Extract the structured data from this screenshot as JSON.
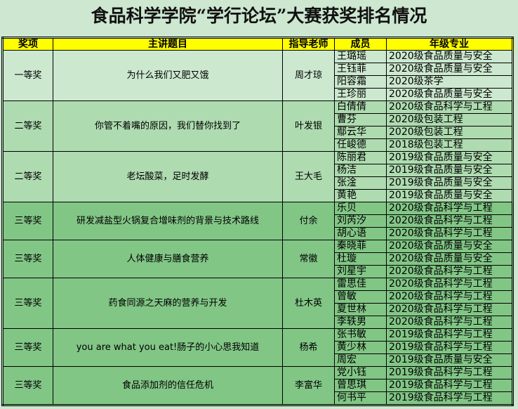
{
  "title": "食品科学学院“学行论坛”大赛获奖排名情况",
  "headers": [
    "奖项",
    "主讲题目",
    "指导老师",
    "成员",
    "年级专业"
  ],
  "colors": {
    "header": "#ffff00",
    "first_prize": "#cce8cf",
    "second_prize": "#aedbb0",
    "third_prize": "#82c686"
  },
  "groups": [
    {
      "award": "一等奖",
      "topic": "为什么我们又肥又饿",
      "advisor": "周才琼",
      "members": [
        [
          "王璐瑶",
          "2020级食品质量与安全"
        ],
        [
          "王钰菲",
          "2020级食品质量与安全"
        ],
        [
          "阳容霜",
          "2020级茶学"
        ],
        [
          "王珍丽",
          "2020级食品质量与安全"
        ]
      ]
    },
    {
      "award": "二等奖",
      "topic": "你管不着嘴的原因，我们替你找到了",
      "advisor": "叶发银",
      "members": [
        [
          "白倩倩",
          "2020级食品科学与工程"
        ],
        [
          "曹芬",
          "2020级包装工程"
        ],
        [
          "鄢云华",
          "2020级包装工程"
        ],
        [
          "任峻德",
          "2018级包装工程"
        ]
      ]
    },
    {
      "award": "二等奖",
      "topic": "老坛酸菜，足时发酵",
      "advisor": "王大毛",
      "members": [
        [
          "陈丽君",
          "2019级食品质量与安全"
        ],
        [
          "杨洁",
          "2019级食品质量与安全"
        ],
        [
          "张淦",
          "2019级食品质量与安全"
        ],
        [
          "黄艳",
          "2019级食品质量与安全"
        ]
      ]
    },
    {
      "award": "三等奖",
      "topic": "研发减盐型火锅复合增味剂的背景与技术路线",
      "advisor": "付余",
      "members": [
        [
          "乐贝",
          "2020级食品科学与工程"
        ],
        [
          "刘芮汐",
          "2020级食品科学与工程"
        ],
        [
          "胡心语",
          "2020级食品科学与工程"
        ]
      ]
    },
    {
      "award": "三等奖",
      "topic": "人体健康与膳食营养",
      "advisor": "常徽",
      "members": [
        [
          "秦晓菲",
          "2020级食品质量与安全"
        ],
        [
          "杜璇",
          "2020级食品质量与安全"
        ],
        [
          "刘星宇",
          "2020级食品科学与工程"
        ]
      ]
    },
    {
      "award": "三等奖",
      "topic": "药食同源之天麻的营养与开发",
      "advisor": "杜木英",
      "members": [
        [
          "雷思佳",
          "2020级食品科学与工程"
        ],
        [
          "曾敏",
          "2020级食品科学与工程"
        ],
        [
          "夏世林",
          "2020级食品科学与工程"
        ],
        [
          "李轶男",
          "2020级食品科学与工程"
        ]
      ]
    },
    {
      "award": "三等奖",
      "topic": "you are what you eat!肠子的小心思我知道",
      "advisor": "杨希",
      "members": [
        [
          "张书敏",
          "2019级食品科学与工程"
        ],
        [
          "黄少林",
          "2019级食品科学与工程"
        ],
        [
          "周宏",
          "2019级食品质量与安全"
        ]
      ]
    },
    {
      "award": "三等奖",
      "topic": "食品添加剂的信任危机",
      "advisor": "李富华",
      "members": [
        [
          "党小钰",
          "2019级食品科学与工程"
        ],
        [
          "曾思琪",
          "2019级食品科学与工程"
        ],
        [
          "何书平",
          "2019级食品科学与工程"
        ]
      ]
    }
  ]
}
